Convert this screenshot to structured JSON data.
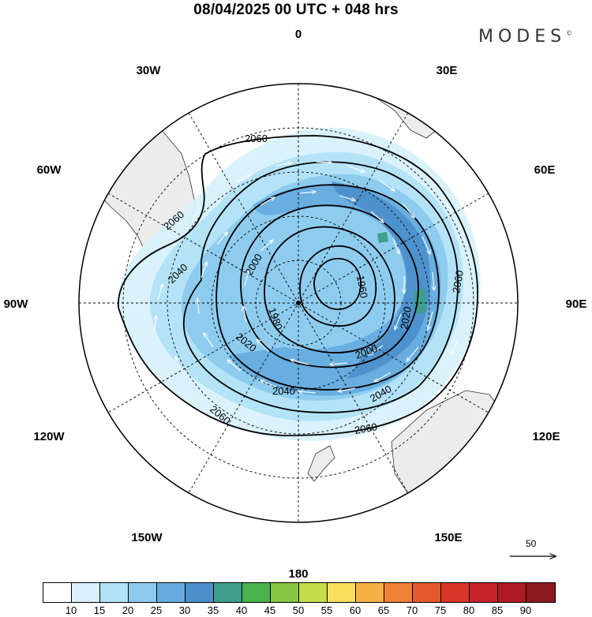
{
  "title": "08/04/2025  00 UTC  + 048 hrs",
  "brand": {
    "name": "MODES",
    "mark": "©"
  },
  "map": {
    "projection": "polar stereographic (south pole)",
    "longitude_labels": {
      "top": "0",
      "top_right": "30E",
      "right_upper": "60E",
      "right": "90E",
      "right_lower": "120E",
      "bottom_right": "150E",
      "bottom": "180",
      "bottom_left": "150W",
      "left_lower": "120W",
      "left": "90W",
      "left_upper": "60W",
      "top_left": "30W"
    },
    "contour_labels": [
      "2060",
      "2060",
      "2060",
      "2060",
      "2060",
      "2040",
      "2040",
      "2040",
      "2020",
      "2020",
      "2000",
      "2000",
      "1980",
      "1960"
    ],
    "land_color": "#ececec",
    "grid_style": "dashed"
  },
  "reference_vector": {
    "label": "50"
  },
  "colorbar": {
    "colors": [
      "#ffffff",
      "#d8f1fc",
      "#b2e2f7",
      "#8ccaee",
      "#66acde",
      "#4b8fcb",
      "#3f9e8c",
      "#4bb24e",
      "#86c644",
      "#c4dc4a",
      "#f7e05e",
      "#f6b043",
      "#ef8236",
      "#e45a2c",
      "#d93528",
      "#c6232a",
      "#ae1a24",
      "#8e1a1f"
    ],
    "labels": [
      "10",
      "15",
      "20",
      "25",
      "30",
      "35",
      "40",
      "45",
      "50",
      "55",
      "60",
      "65",
      "70",
      "75",
      "80",
      "85",
      "90"
    ]
  }
}
